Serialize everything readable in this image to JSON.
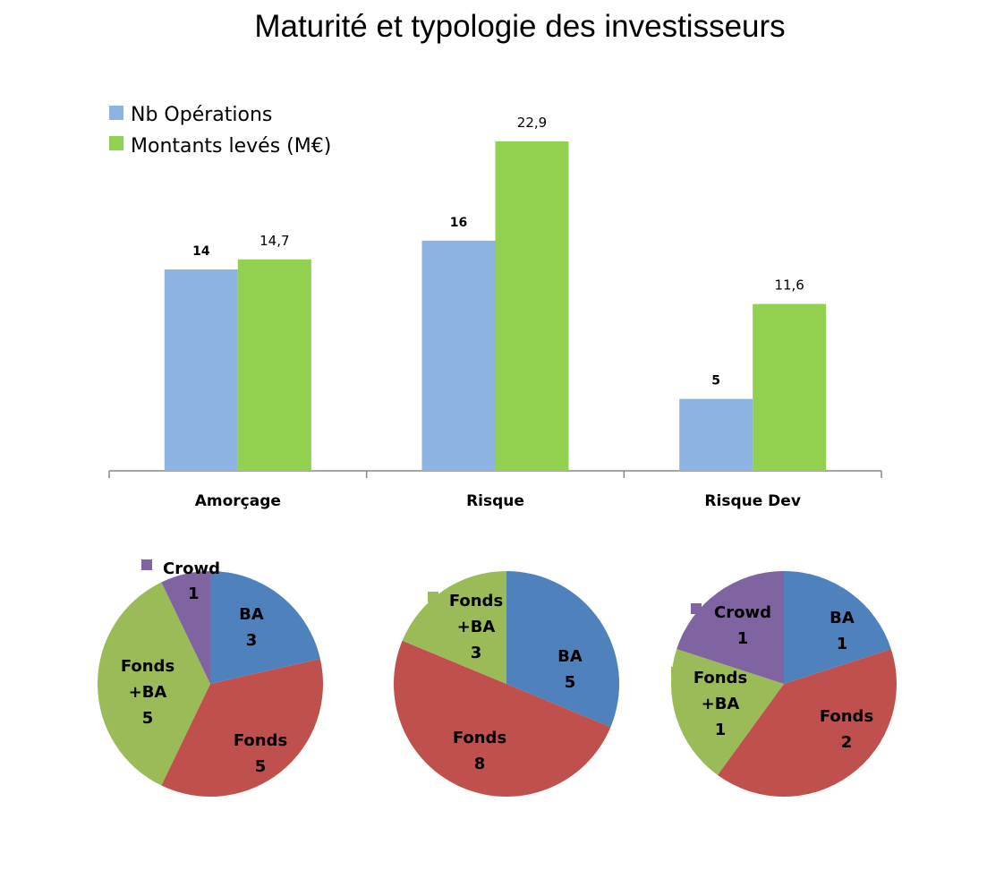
{
  "title": "Maturité et typologie des investisseurs",
  "colors": {
    "nb": "#8db3e2",
    "montants": "#92d050",
    "ba": "#4f81bd",
    "fonds": "#c0504d",
    "fonds_ba": "#9bbb59",
    "crowd": "#8064a2"
  },
  "chart_data": [
    {
      "type": "bar",
      "categories": [
        "Amorçage",
        "Risque",
        "Risque Dev"
      ],
      "series": [
        {
          "name": "Nb Opérations",
          "values": [
            14,
            16,
            5
          ],
          "labels": [
            "14",
            "16",
            "5"
          ]
        },
        {
          "name": "Montants levés (M€)",
          "values": [
            14.7,
            22.9,
            11.6
          ],
          "labels": [
            "14,7",
            "22,9",
            "11,6"
          ]
        }
      ],
      "xlabel": "",
      "ylabel": "",
      "grid": false,
      "legend_position": "top-left"
    },
    {
      "type": "pie",
      "slices": [
        {
          "label": "BA",
          "value": 3,
          "color": "ba"
        },
        {
          "label": "Fonds",
          "value": 5,
          "color": "fonds"
        },
        {
          "label": "Fonds +BA",
          "value": 5,
          "color": "fonds_ba"
        },
        {
          "label": "Crowd",
          "value": 1,
          "color": "crowd"
        }
      ]
    },
    {
      "type": "pie",
      "slices": [
        {
          "label": "BA",
          "value": 5,
          "color": "ba"
        },
        {
          "label": "Fonds",
          "value": 8,
          "color": "fonds"
        },
        {
          "label": "Fonds +BA",
          "value": 3,
          "color": "fonds_ba"
        }
      ]
    },
    {
      "type": "pie",
      "slices": [
        {
          "label": "BA",
          "value": 1,
          "color": "ba"
        },
        {
          "label": "Fonds",
          "value": 2,
          "color": "fonds"
        },
        {
          "label": "Fonds +BA",
          "value": 1,
          "color": "fonds_ba"
        },
        {
          "label": "Crowd",
          "value": 1,
          "color": "crowd"
        }
      ]
    }
  ]
}
